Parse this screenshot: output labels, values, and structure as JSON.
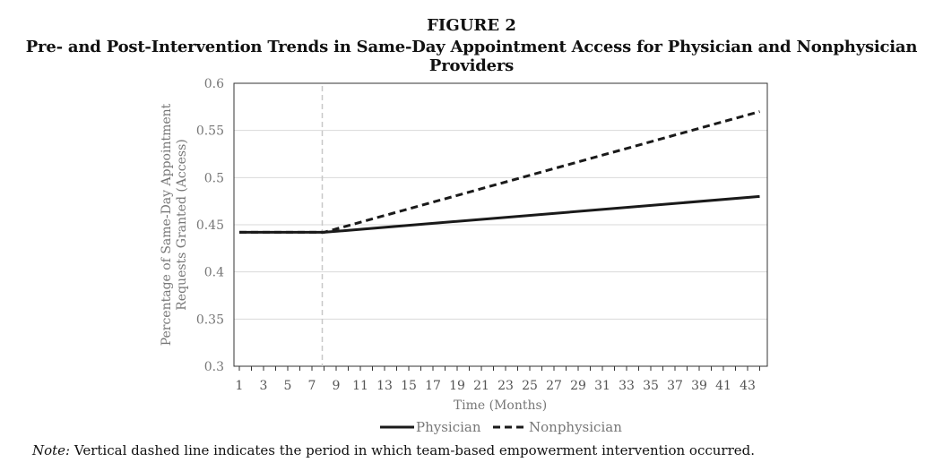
{
  "figure": {
    "label": "FIGURE 2",
    "title": "Pre- and Post-Intervention Trends in Same-Day Appointment Access for Physician and Nonphysician Providers"
  },
  "note": {
    "prefix": "Note:",
    "text": " Vertical dashed line indicates the period in which team-based empowerment intervention occurred."
  },
  "chart_data": {
    "type": "line",
    "xlabel": "Time (Months)",
    "ylabel_lines": [
      "Percentage of Same-Day Appointment",
      "Requests Granted (Access)"
    ],
    "xlim": [
      1,
      44
    ],
    "ylim": [
      0.3,
      0.6
    ],
    "yticks": [
      0.3,
      0.35,
      0.4,
      0.45,
      0.5,
      0.55,
      0.6
    ],
    "ytick_labels": [
      "0.3",
      "0.35",
      "0.4",
      "0.45",
      "0.5",
      "0.55",
      "0.6"
    ],
    "xticks": [
      1,
      3,
      5,
      7,
      9,
      11,
      13,
      15,
      17,
      19,
      21,
      23,
      25,
      27,
      29,
      31,
      33,
      35,
      37,
      39,
      41,
      43
    ],
    "intervention_x": 8,
    "grid": true,
    "legend_position": "bottom",
    "series": [
      {
        "name": "Physician",
        "style": "solid",
        "color": "#1a1a1a",
        "x": [
          1,
          8,
          44
        ],
        "y": [
          0.442,
          0.442,
          0.48
        ]
      },
      {
        "name": "Nonphysician",
        "style": "dashed",
        "color": "#1a1a1a",
        "x": [
          1,
          8,
          44
        ],
        "y": [
          0.442,
          0.442,
          0.57
        ]
      }
    ]
  }
}
